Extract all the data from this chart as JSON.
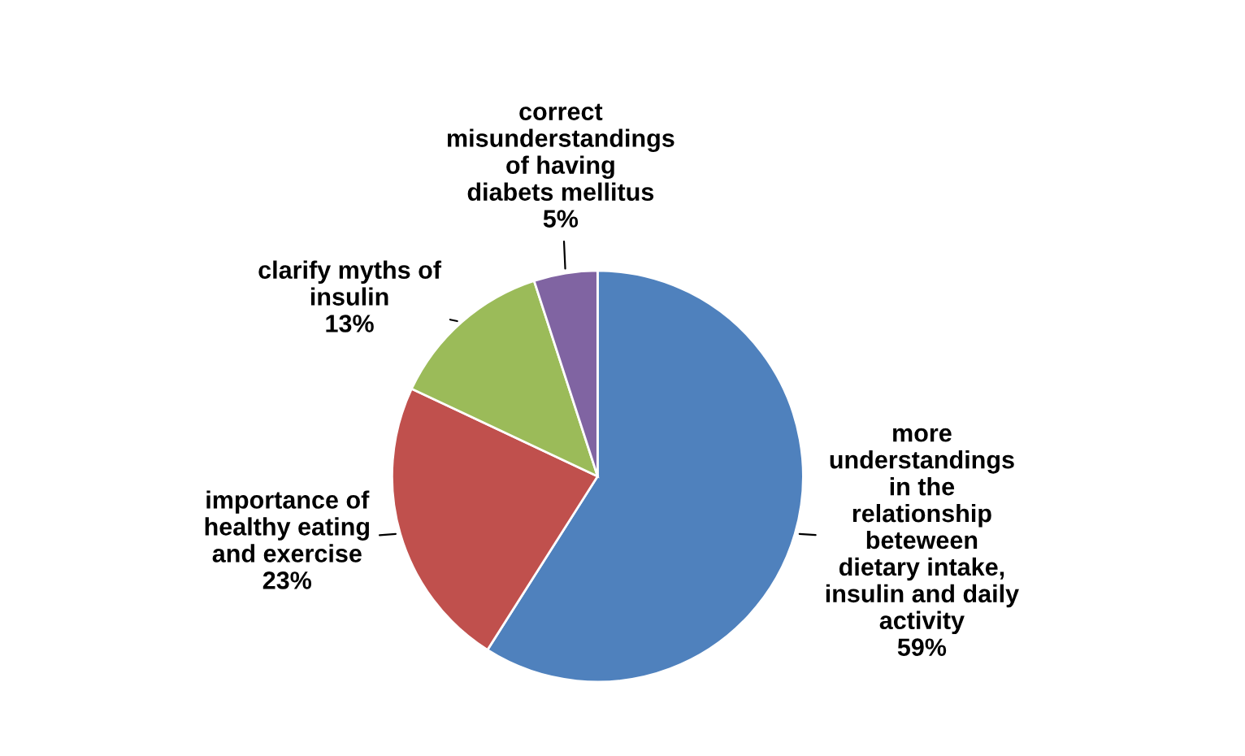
{
  "chart_data": {
    "type": "pie",
    "categories": [
      "more\nunderstandings\nin the\nrelationship\nbeteween\ndietary intake,\ninsulin and daily\nactivity",
      "importance of\nhealthy eating\nand exercise",
      "clarify myths of\ninsulin",
      "correct\nmisunderstandings\nof having\ndiabets mellitus"
    ],
    "values": [
      59,
      23,
      13,
      5
    ],
    "value_labels": [
      "59%",
      "23%",
      "13%",
      "5%"
    ],
    "colors": [
      "#4f81bd",
      "#c0504d",
      "#9bbb59",
      "#8064a2"
    ],
    "legend": false
  }
}
